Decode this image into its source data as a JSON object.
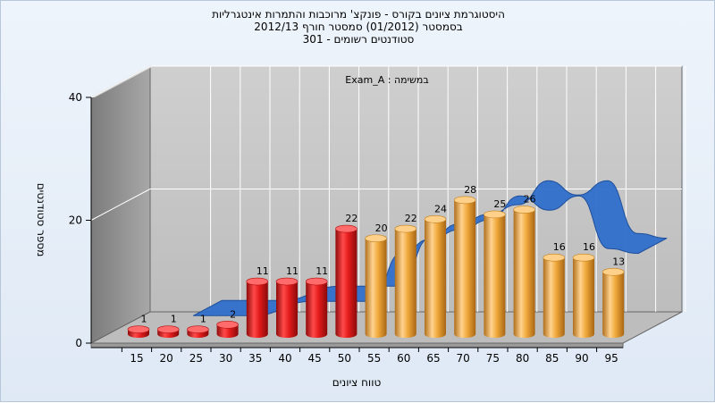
{
  "chart_data": {
    "type": "bar",
    "title_lines": [
      "היסטוגרמת ציונים בקורס - פונקצ' מרוכבות והתמרות אינטגרליות",
      "בסמסטר  (01/2012)  סמסטר חורף 2012/13",
      "סטודנטים רשומים - 301"
    ],
    "annotation": "במשימה : Exam_A",
    "xlabel": "טווח ציונים",
    "ylabel": "מספר סטודנטים",
    "categories": [
      "15",
      "20",
      "25",
      "30",
      "35",
      "40",
      "45",
      "50",
      "55",
      "60",
      "65",
      "70",
      "75",
      "80",
      "85",
      "90",
      "95"
    ],
    "values": [
      1,
      1,
      1,
      2,
      11,
      11,
      11,
      22,
      20,
      22,
      24,
      28,
      25,
      26,
      16,
      16,
      13
    ],
    "trend_values": [
      null,
      2,
      2,
      2,
      null,
      5,
      5,
      5,
      15,
      18,
      20,
      22,
      27,
      24,
      27,
      16,
      15
    ],
    "y_ticks": [
      0,
      20,
      40
    ],
    "ylim": [
      0,
      40
    ],
    "bar_colors": {
      "failing": "#e31b1b",
      "passing": "#f0a93b"
    },
    "failing_threshold": 55,
    "trend_color": "#2f6fcb",
    "grid": true
  }
}
